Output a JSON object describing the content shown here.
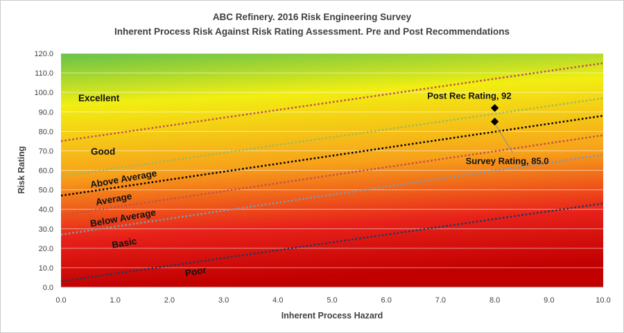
{
  "chart_data": {
    "type": "scatter",
    "title": "ABC Refinery. 2016 Risk Engineering Survey",
    "subtitle": "Inherent Process Risk Against Risk Rating Assessment. Pre and Post Recommendations",
    "xlabel": "Inherent Process Hazard",
    "ylabel": "Risk Rating",
    "xlim": [
      0,
      10
    ],
    "ylim": [
      0,
      120
    ],
    "x_ticks": [
      "0.0",
      "1.0",
      "2.0",
      "3.0",
      "4.0",
      "5.0",
      "6.0",
      "7.0",
      "8.0",
      "9.0",
      "10.0"
    ],
    "y_ticks": [
      "0.0",
      "10.0",
      "20.0",
      "30.0",
      "40.0",
      "50.0",
      "60.0",
      "70.0",
      "80.0",
      "90.0",
      "100.0",
      "110.0",
      "120.0"
    ],
    "grid": true,
    "background_gradient": [
      "#66c24a",
      "#f2ee12",
      "#f7a21a",
      "#e8221a",
      "#c10000"
    ],
    "boundary_lines": [
      {
        "x": [
          0,
          10
        ],
        "y": [
          75,
          115
        ],
        "color": "#c0504d"
      },
      {
        "x": [
          0,
          10
        ],
        "y": [
          57,
          97
        ],
        "color": "#9bbb59"
      },
      {
        "x": [
          0,
          10
        ],
        "y": [
          47,
          88
        ],
        "color": "#000000"
      },
      {
        "x": [
          0,
          10
        ],
        "y": [
          37,
          78
        ],
        "color": "#c0504d"
      },
      {
        "x": [
          0,
          10
        ],
        "y": [
          27,
          68
        ],
        "color": "#8497b0"
      },
      {
        "x": [
          0,
          10
        ],
        "y": [
          3,
          43
        ],
        "color": "#1f3864"
      }
    ],
    "zones": [
      {
        "label": "Excellent",
        "x": 0.32,
        "y": 95.5,
        "angle": 0
      },
      {
        "label": "Good",
        "x": 0.55,
        "y": 68,
        "angle": 0
      },
      {
        "label": "Above Average",
        "x": 0.55,
        "y": 51,
        "angle": -10
      },
      {
        "label": "Average",
        "x": 0.65,
        "y": 42,
        "angle": -10
      },
      {
        "label": "Below Average",
        "x": 0.55,
        "y": 31,
        "angle": -10
      },
      {
        "label": "Basic",
        "x": 0.95,
        "y": 20,
        "angle": -10
      },
      {
        "label": "Poor",
        "x": 2.3,
        "y": 5.5,
        "angle": -10
      }
    ],
    "series": [
      {
        "x": [
          8.0
        ],
        "y": [
          92
        ],
        "label": "Post Rec Rating, 92"
      },
      {
        "x": [
          8.0
        ],
        "y": [
          85
        ],
        "label": "Survey Rating, 85.0"
      }
    ]
  }
}
